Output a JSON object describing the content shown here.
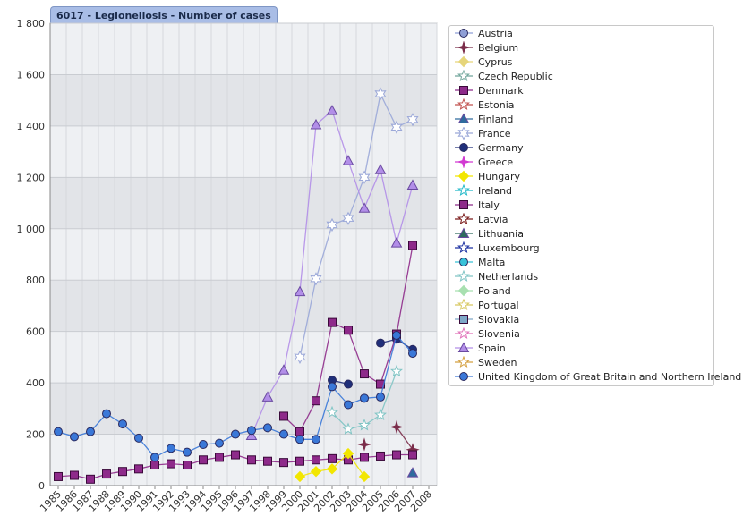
{
  "chart_data": {
    "type": "line",
    "title": "6017 - Legionellosis - Number of cases",
    "xlabel": "",
    "ylabel": "",
    "categories": [
      "1985",
      "1986",
      "1987",
      "1988",
      "1989",
      "1990",
      "1991",
      "1992",
      "1993",
      "1994",
      "1995",
      "1996",
      "1997",
      "1998",
      "1999",
      "2000",
      "2001",
      "2002",
      "2003",
      "2004",
      "2005",
      "2006",
      "2007",
      "2008"
    ],
    "ylim": [
      0,
      1800
    ],
    "yticks": [
      0,
      200,
      400,
      600,
      800,
      1000,
      1200,
      1400,
      1600,
      1800
    ],
    "ytick_labels": [
      "0",
      "200",
      "400",
      "600",
      "800",
      "1 000",
      "1 200",
      "1 400",
      "1 600",
      "1 800"
    ],
    "series": [
      {
        "name": "Austria",
        "color": "#8f9fd6",
        "marker": "circle",
        "values": [
          null,
          null,
          null,
          null,
          null,
          null,
          null,
          null,
          null,
          null,
          null,
          null,
          null,
          null,
          null,
          null,
          null,
          null,
          null,
          null,
          null,
          null,
          null,
          null
        ]
      },
      {
        "name": "Belgium",
        "color": "#7b2d4a",
        "marker": "diamond-star",
        "values": [
          null,
          null,
          null,
          null,
          null,
          null,
          null,
          null,
          null,
          null,
          null,
          null,
          null,
          null,
          null,
          null,
          null,
          null,
          null,
          160,
          null,
          228,
          140,
          null
        ]
      },
      {
        "name": "Cyprus",
        "color": "#e6d57a",
        "marker": "diamond",
        "values": [
          null,
          null,
          null,
          null,
          null,
          null,
          null,
          null,
          null,
          null,
          null,
          null,
          null,
          null,
          null,
          null,
          null,
          null,
          null,
          null,
          null,
          null,
          null,
          null
        ]
      },
      {
        "name": "Czech Republic",
        "color": "#6fa59a",
        "marker": "star",
        "values": [
          null,
          null,
          null,
          null,
          null,
          null,
          null,
          null,
          null,
          null,
          null,
          null,
          null,
          null,
          null,
          null,
          null,
          null,
          null,
          null,
          null,
          null,
          null,
          null
        ]
      },
      {
        "name": "Denmark",
        "color": "#8e2a8a",
        "marker": "square",
        "values": [
          35,
          40,
          25,
          45,
          55,
          65,
          80,
          85,
          80,
          100,
          110,
          120,
          100,
          95,
          90,
          95,
          100,
          105,
          100,
          110,
          115,
          120,
          120,
          null
        ]
      },
      {
        "name": "Estonia",
        "color": "#c0504d",
        "marker": "star",
        "values": [
          null,
          null,
          null,
          null,
          null,
          null,
          null,
          null,
          null,
          null,
          null,
          null,
          null,
          null,
          null,
          null,
          null,
          null,
          null,
          null,
          null,
          null,
          null,
          null
        ]
      },
      {
        "name": "Finland",
        "color": "#2f6b9e",
        "marker": "triangle",
        "values": [
          null,
          null,
          null,
          null,
          null,
          null,
          null,
          null,
          null,
          null,
          null,
          null,
          null,
          null,
          null,
          null,
          null,
          null,
          null,
          null,
          null,
          null,
          50,
          null
        ]
      },
      {
        "name": "France",
        "color": "#9aa7d8",
        "marker": "star6",
        "values": [
          null,
          null,
          null,
          null,
          null,
          null,
          null,
          null,
          null,
          null,
          null,
          null,
          null,
          null,
          null,
          500,
          805,
          1015,
          1040,
          1200,
          1525,
          1395,
          1425,
          null
        ]
      },
      {
        "name": "Germany",
        "color": "#1f2f7a",
        "marker": "circle",
        "values": [
          null,
          null,
          null,
          null,
          null,
          null,
          null,
          null,
          null,
          null,
          null,
          null,
          null,
          null,
          null,
          null,
          null,
          410,
          395,
          null,
          555,
          570,
          530,
          null
        ]
      },
      {
        "name": "Greece",
        "color": "#d23ad2",
        "marker": "diamond-star",
        "values": [
          null,
          null,
          null,
          null,
          null,
          null,
          null,
          null,
          null,
          null,
          null,
          null,
          null,
          null,
          null,
          null,
          null,
          null,
          null,
          null,
          null,
          null,
          null,
          null
        ]
      },
      {
        "name": "Hungary",
        "color": "#f2e600",
        "marker": "diamond",
        "values": [
          null,
          null,
          null,
          null,
          null,
          null,
          null,
          null,
          null,
          null,
          null,
          null,
          null,
          null,
          null,
          35,
          55,
          65,
          125,
          35,
          null,
          null,
          null,
          null
        ]
      },
      {
        "name": "Ireland",
        "color": "#1fb8c8",
        "marker": "star",
        "values": [
          null,
          null,
          null,
          null,
          null,
          null,
          null,
          null,
          null,
          null,
          null,
          null,
          null,
          null,
          null,
          null,
          null,
          null,
          null,
          null,
          null,
          null,
          null,
          null
        ]
      },
      {
        "name": "Italy",
        "color": "#8e2a8a",
        "marker": "square",
        "values": [
          null,
          null,
          null,
          null,
          null,
          null,
          null,
          null,
          null,
          null,
          null,
          null,
          null,
          null,
          270,
          210,
          330,
          635,
          605,
          435,
          395,
          590,
          935,
          null
        ]
      },
      {
        "name": "Latvia",
        "color": "#7a1a1a",
        "marker": "star",
        "values": [
          null,
          null,
          null,
          null,
          null,
          null,
          null,
          null,
          null,
          null,
          null,
          null,
          null,
          null,
          null,
          null,
          null,
          null,
          null,
          null,
          null,
          null,
          null,
          null
        ]
      },
      {
        "name": "Lithuania",
        "color": "#2e6b5e",
        "marker": "triangle",
        "values": [
          null,
          null,
          null,
          null,
          null,
          null,
          null,
          null,
          null,
          null,
          null,
          null,
          null,
          null,
          null,
          null,
          null,
          null,
          null,
          null,
          null,
          null,
          null,
          null
        ]
      },
      {
        "name": "Luxembourg",
        "color": "#1a2fa0",
        "marker": "star",
        "values": [
          null,
          null,
          null,
          null,
          null,
          null,
          null,
          null,
          null,
          null,
          null,
          null,
          null,
          null,
          null,
          null,
          null,
          null,
          null,
          null,
          null,
          null,
          null,
          null
        ]
      },
      {
        "name": "Malta",
        "color": "#38c2d8",
        "marker": "circle",
        "values": [
          null,
          null,
          null,
          null,
          null,
          null,
          null,
          null,
          null,
          null,
          null,
          null,
          null,
          null,
          null,
          null,
          null,
          null,
          null,
          null,
          null,
          null,
          null,
          null
        ]
      },
      {
        "name": "Netherlands",
        "color": "#7fc4c4",
        "marker": "star",
        "values": [
          null,
          null,
          null,
          null,
          null,
          null,
          null,
          null,
          null,
          null,
          null,
          null,
          null,
          null,
          null,
          null,
          null,
          285,
          220,
          235,
          275,
          445,
          null,
          null
        ]
      },
      {
        "name": "Poland",
        "color": "#a8e0b0",
        "marker": "diamond",
        "values": [
          null,
          null,
          null,
          null,
          null,
          null,
          null,
          null,
          null,
          null,
          null,
          null,
          null,
          null,
          null,
          null,
          null,
          null,
          null,
          null,
          null,
          null,
          null,
          null
        ]
      },
      {
        "name": "Portugal",
        "color": "#d8c860",
        "marker": "star",
        "values": [
          null,
          null,
          null,
          null,
          null,
          null,
          null,
          null,
          null,
          null,
          null,
          null,
          null,
          null,
          null,
          null,
          null,
          null,
          null,
          null,
          null,
          null,
          null,
          null
        ]
      },
      {
        "name": "Slovakia",
        "color": "#7fa8c8",
        "marker": "square",
        "values": [
          null,
          null,
          null,
          null,
          null,
          null,
          null,
          null,
          null,
          null,
          null,
          null,
          null,
          null,
          null,
          null,
          null,
          null,
          null,
          null,
          null,
          null,
          null,
          null
        ]
      },
      {
        "name": "Slovenia",
        "color": "#e070b8",
        "marker": "star",
        "values": [
          null,
          null,
          null,
          null,
          null,
          null,
          null,
          null,
          null,
          null,
          null,
          null,
          null,
          null,
          null,
          null,
          null,
          null,
          null,
          null,
          null,
          null,
          null,
          null
        ]
      },
      {
        "name": "Spain",
        "color": "#b28ee8",
        "marker": "triangle",
        "values": [
          null,
          null,
          null,
          null,
          null,
          null,
          null,
          null,
          null,
          null,
          null,
          null,
          195,
          345,
          450,
          755,
          1405,
          1460,
          1265,
          1080,
          1230,
          945,
          1170,
          null
        ]
      },
      {
        "name": "Sweden",
        "color": "#d4a040",
        "marker": "star",
        "values": [
          null,
          null,
          null,
          null,
          null,
          null,
          null,
          null,
          null,
          null,
          null,
          null,
          null,
          null,
          null,
          null,
          null,
          null,
          null,
          null,
          null,
          null,
          null,
          null
        ]
      },
      {
        "name": "United Kingdom of Great Britain and Northern Ireland",
        "color": "#3a78d8",
        "marker": "circle",
        "values": [
          210,
          190,
          210,
          280,
          240,
          185,
          110,
          145,
          130,
          160,
          165,
          200,
          215,
          225,
          200,
          180,
          180,
          385,
          315,
          340,
          345,
          585,
          515,
          null
        ]
      }
    ]
  }
}
